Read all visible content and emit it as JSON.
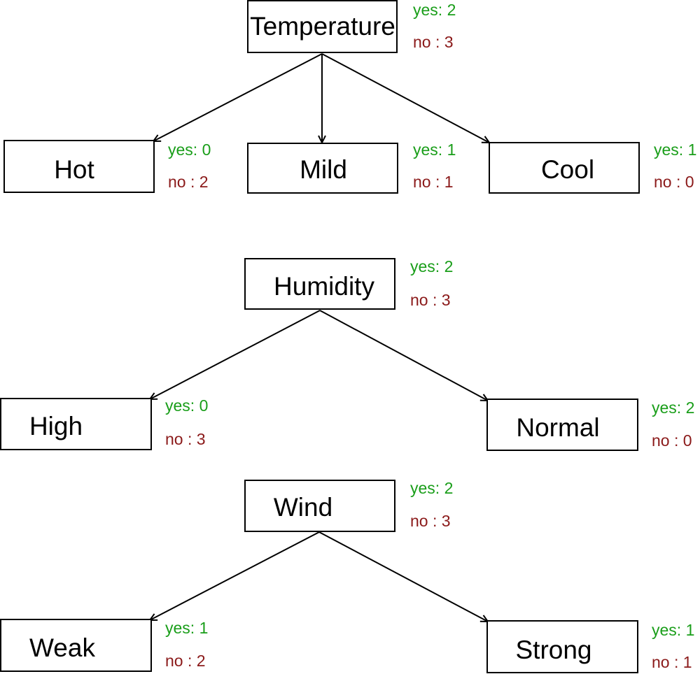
{
  "colors": {
    "yes": "#1a9e1a",
    "no": "#8b1a1a",
    "stroke": "#000000"
  },
  "trees": [
    {
      "root": {
        "label": "Temperature",
        "yes": "yes: 2",
        "no": "no : 3"
      },
      "children": [
        {
          "label": "Hot",
          "yes": "yes: 0",
          "no": "no : 2"
        },
        {
          "label": "Mild",
          "yes": "yes: 1",
          "no": "no : 1"
        },
        {
          "label": "Cool",
          "yes": "yes: 1",
          "no": "no : 0"
        }
      ]
    },
    {
      "root": {
        "label": "Humidity",
        "yes": "yes: 2",
        "no": "no : 3"
      },
      "children": [
        {
          "label": "High",
          "yes": "yes: 0",
          "no": "no : 3"
        },
        {
          "label": "Normal",
          "yes": "yes: 2",
          "no": "no : 0"
        }
      ]
    },
    {
      "root": {
        "label": "Wind",
        "yes": "yes: 2",
        "no": "no : 3"
      },
      "children": [
        {
          "label": "Weak",
          "yes": "yes: 1",
          "no": "no : 2"
        },
        {
          "label": "Strong",
          "yes": "yes: 1",
          "no": "no : 1"
        }
      ]
    }
  ]
}
